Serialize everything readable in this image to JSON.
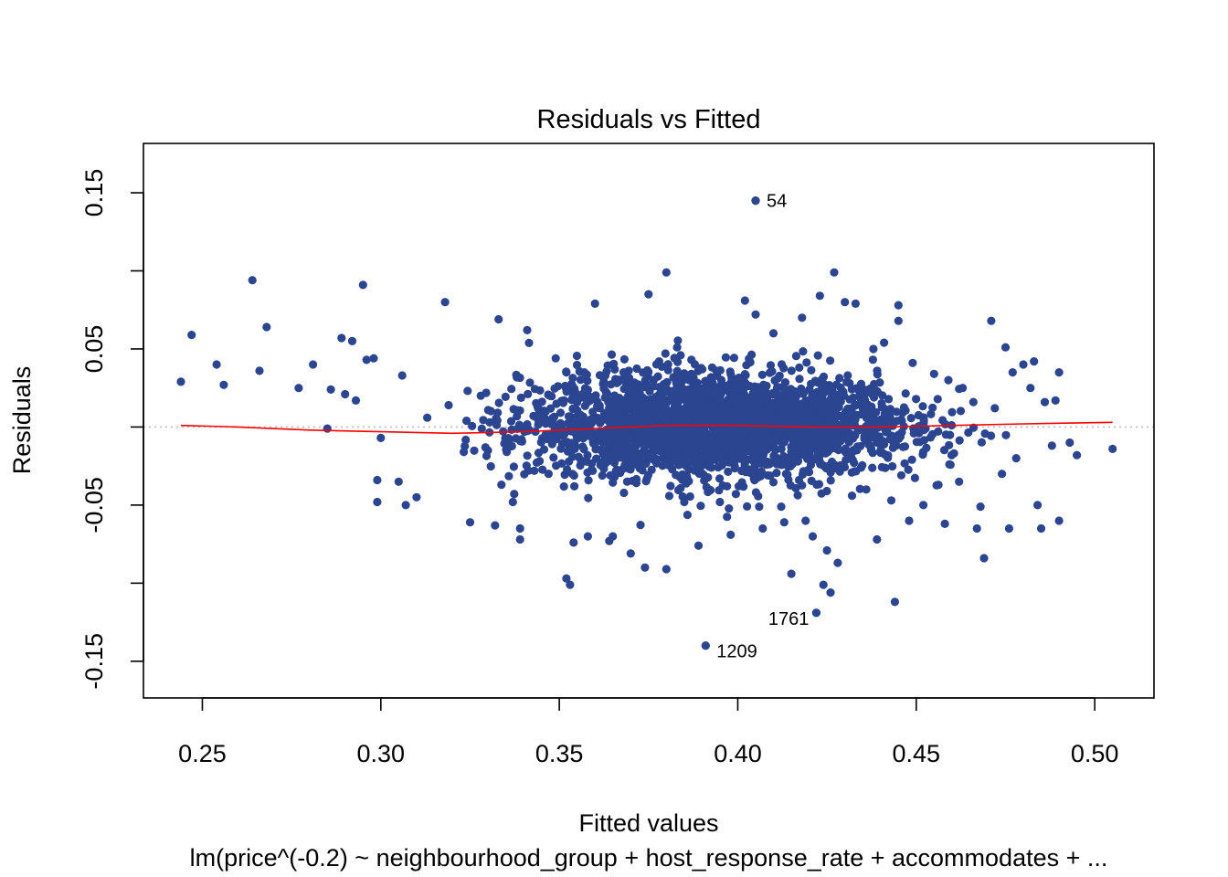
{
  "chart_data": {
    "type": "scatter",
    "title": "Residuals vs Fitted",
    "xlabel": "Fitted values",
    "ylabel": "Residuals",
    "subtitle": "lm(price^(-0.2) ~ neighbourhood_group + host_response_rate + accommodates + ...",
    "xlim": [
      0.2335,
      0.5166
    ],
    "ylim": [
      -0.1735,
      0.1816
    ],
    "x_ticks": [
      0.25,
      0.3,
      0.35,
      0.4,
      0.45,
      0.5
    ],
    "x_tick_labels": [
      "0.25",
      "0.30",
      "0.35",
      "0.40",
      "0.45",
      "0.50"
    ],
    "y_ticks": [
      -0.15,
      -0.1,
      -0.05,
      0.0,
      0.05,
      0.1,
      0.15
    ],
    "y_tick_labels": [
      "-0.15",
      "",
      "-0.05",
      "",
      "0.05",
      "",
      "0.15"
    ],
    "grid": false,
    "reference_line_y": 0,
    "colors": {
      "points": "#2B4590",
      "smooth": "#FF0000",
      "reference": "#BEBEBE"
    },
    "labeled_points": [
      {
        "label": "54",
        "x": 0.405,
        "y": 0.145
      },
      {
        "label": "1761",
        "x": 0.422,
        "y": -0.119
      },
      {
        "label": "1209",
        "x": 0.391,
        "y": -0.14
      }
    ],
    "points": [
      [
        0.244,
        0.029
      ],
      [
        0.247,
        0.059
      ],
      [
        0.254,
        0.04
      ],
      [
        0.256,
        0.027
      ],
      [
        0.264,
        0.094
      ],
      [
        0.266,
        0.036
      ],
      [
        0.268,
        0.064
      ],
      [
        0.277,
        0.025
      ],
      [
        0.281,
        0.04
      ],
      [
        0.285,
        -0.001
      ],
      [
        0.286,
        0.024
      ],
      [
        0.289,
        0.057
      ],
      [
        0.29,
        0.021
      ],
      [
        0.292,
        0.055
      ],
      [
        0.293,
        0.017
      ],
      [
        0.295,
        0.091
      ],
      [
        0.296,
        0.043
      ],
      [
        0.298,
        0.044
      ],
      [
        0.299,
        -0.034
      ],
      [
        0.299,
        -0.048
      ],
      [
        0.3,
        -0.007
      ],
      [
        0.305,
        -0.035
      ],
      [
        0.306,
        0.033
      ],
      [
        0.307,
        -0.05
      ],
      [
        0.31,
        -0.045
      ],
      [
        0.313,
        0.006
      ],
      [
        0.318,
        0.08
      ],
      [
        0.319,
        0.014
      ],
      [
        0.324,
        0.004
      ],
      [
        0.328,
        0.02
      ],
      [
        0.33,
        -0.015
      ],
      [
        0.333,
        0.069
      ],
      [
        0.325,
        -0.061
      ],
      [
        0.332,
        -0.063
      ],
      [
        0.337,
        -0.048
      ],
      [
        0.339,
        -0.065
      ],
      [
        0.339,
        -0.072
      ],
      [
        0.341,
        0.062
      ],
      [
        0.343,
        -0.028
      ],
      [
        0.347,
        -0.03
      ],
      [
        0.349,
        0.044
      ],
      [
        0.352,
        0.035
      ],
      [
        0.352,
        -0.097
      ],
      [
        0.353,
        -0.101
      ],
      [
        0.354,
        -0.074
      ],
      [
        0.358,
        -0.07
      ],
      [
        0.36,
        0.079
      ],
      [
        0.364,
        -0.073
      ],
      [
        0.365,
        0.04
      ],
      [
        0.365,
        -0.07
      ],
      [
        0.368,
        0.035
      ],
      [
        0.37,
        -0.081
      ],
      [
        0.374,
        -0.09
      ],
      [
        0.375,
        0.085
      ],
      [
        0.38,
        0.099
      ],
      [
        0.38,
        -0.091
      ],
      [
        0.383,
        0.051
      ],
      [
        0.385,
        -0.048
      ],
      [
        0.387,
        0.043
      ],
      [
        0.389,
        -0.076
      ],
      [
        0.391,
        -0.14
      ],
      [
        0.394,
        0.036
      ],
      [
        0.395,
        -0.048
      ],
      [
        0.398,
        -0.069
      ],
      [
        0.402,
        0.081
      ],
      [
        0.405,
        0.145
      ],
      [
        0.405,
        0.072
      ],
      [
        0.406,
        -0.051
      ],
      [
        0.407,
        -0.065
      ],
      [
        0.41,
        0.06
      ],
      [
        0.413,
        -0.061
      ],
      [
        0.415,
        -0.094
      ],
      [
        0.418,
        0.07
      ],
      [
        0.419,
        -0.06
      ],
      [
        0.421,
        -0.07
      ],
      [
        0.422,
        -0.119
      ],
      [
        0.423,
        0.084
      ],
      [
        0.424,
        -0.101
      ],
      [
        0.425,
        -0.079
      ],
      [
        0.426,
        -0.106
      ],
      [
        0.427,
        0.099
      ],
      [
        0.428,
        -0.087
      ],
      [
        0.43,
        0.08
      ],
      [
        0.432,
        -0.044
      ],
      [
        0.433,
        0.079
      ],
      [
        0.436,
        -0.04
      ],
      [
        0.438,
        0.05
      ],
      [
        0.439,
        -0.072
      ],
      [
        0.441,
        0.054
      ],
      [
        0.443,
        -0.047
      ],
      [
        0.444,
        -0.112
      ],
      [
        0.445,
        0.078
      ],
      [
        0.445,
        0.068
      ],
      [
        0.448,
        -0.06
      ],
      [
        0.449,
        0.041
      ],
      [
        0.452,
        -0.05
      ],
      [
        0.455,
        0.034
      ],
      [
        0.458,
        -0.062
      ],
      [
        0.459,
        0.03
      ],
      [
        0.462,
        -0.035
      ],
      [
        0.463,
        0.025
      ],
      [
        0.466,
        0.016
      ],
      [
        0.467,
        -0.065
      ],
      [
        0.468,
        -0.051
      ],
      [
        0.469,
        -0.084
      ],
      [
        0.471,
        0.068
      ],
      [
        0.472,
        0.012
      ],
      [
        0.474,
        -0.03
      ],
      [
        0.475,
        0.051
      ],
      [
        0.476,
        -0.065
      ],
      [
        0.477,
        0.035
      ],
      [
        0.478,
        -0.02
      ],
      [
        0.48,
        0.04
      ],
      [
        0.482,
        0.025
      ],
      [
        0.484,
        -0.05
      ],
      [
        0.485,
        -0.065
      ],
      [
        0.486,
        0.016
      ],
      [
        0.488,
        -0.012
      ],
      [
        0.49,
        -0.06
      ],
      [
        0.49,
        0.035
      ],
      [
        0.493,
        -0.01
      ],
      [
        0.495,
        -0.018
      ],
      [
        0.505,
        -0.014
      ],
      [
        0.489,
        0.017
      ],
      [
        0.483,
        0.042
      ]
    ],
    "smooth": [
      [
        0.244,
        0.001
      ],
      [
        0.26,
        0.0
      ],
      [
        0.28,
        -0.002
      ],
      [
        0.3,
        -0.003
      ],
      [
        0.32,
        -0.004
      ],
      [
        0.34,
        -0.003
      ],
      [
        0.36,
        -0.001
      ],
      [
        0.38,
        0.001
      ],
      [
        0.4,
        0.001
      ],
      [
        0.42,
        0.0
      ],
      [
        0.44,
        0.0
      ],
      [
        0.46,
        0.001
      ],
      [
        0.48,
        0.002
      ],
      [
        0.505,
        0.003
      ]
    ]
  }
}
